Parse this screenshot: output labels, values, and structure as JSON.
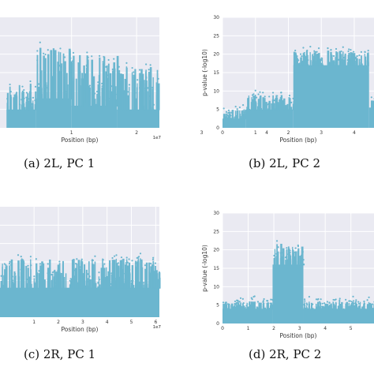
{
  "colors": {
    "points": "#6bb6cf",
    "plot_bg": "#eaeaf2",
    "grid": "#ffffff"
  },
  "chart_data": [
    {
      "id": "a",
      "type": "scatter",
      "caption": "(a) 2L, PC 1",
      "xlabel": "Position (bp)",
      "ylabel": "",
      "x_multiplier": "1e7",
      "x_ticks": [
        "1",
        "2",
        "3",
        "4"
      ],
      "x_tick_values": [
        1,
        2,
        3,
        4
      ],
      "xlim": [
        -0.1,
        2.35
      ],
      "y_ticks": [],
      "ylim": [
        0,
        30
      ],
      "grid": true,
      "legend": "none",
      "series": [
        {
          "segments": [
            {
              "x": [
                0.0,
                0.45
              ],
              "base": 5.0,
              "peak": 12.0
            },
            {
              "x": [
                0.45,
                1.0
              ],
              "base": 8.0,
              "peak": 22.0
            },
            {
              "x": [
                1.0,
                1.7
              ],
              "base": 6.0,
              "peak": 20.0
            },
            {
              "x": [
                1.7,
                2.35
              ],
              "base": 5.0,
              "peak": 17.0
            }
          ]
        }
      ]
    },
    {
      "id": "b",
      "type": "scatter",
      "caption": "(b) 2L, PC 2",
      "xlabel": "Position (bp)",
      "ylabel": "p-value (-log10)",
      "x_multiplier": "",
      "x_ticks": [
        "0",
        "1",
        "2",
        "3",
        "4"
      ],
      "x_tick_values": [
        0,
        1,
        2,
        3,
        4
      ],
      "xlim": [
        0,
        4.6
      ],
      "y_ticks": [
        "0",
        "5",
        "10",
        "15",
        "20",
        "25",
        "30"
      ],
      "y_tick_values": [
        0,
        5,
        10,
        15,
        20,
        25,
        30
      ],
      "ylim": [
        0,
        30
      ],
      "grid": true,
      "legend": "none",
      "series": [
        {
          "segments": [
            {
              "x": [
                0.0,
                0.7
              ],
              "base": 2.5,
              "peak": 5.0
            },
            {
              "x": [
                0.7,
                2.15
              ],
              "base": 5.0,
              "peak": 9.0
            },
            {
              "x": [
                2.15,
                4.45
              ],
              "base": 17.0,
              "peak": 21.0
            },
            {
              "x": [
                4.45,
                4.6
              ],
              "base": 5.5,
              "peak": 8.0
            }
          ]
        }
      ]
    },
    {
      "id": "c",
      "type": "scatter",
      "caption": "(c) 2R, PC 1",
      "xlabel": "Position (bp)",
      "ylabel": "",
      "x_multiplier": "1e7",
      "x_ticks": [
        "1",
        "2",
        "3",
        "4",
        "5",
        "6"
      ],
      "x_tick_values": [
        1,
        2,
        3,
        4,
        5,
        6
      ],
      "xlim": [
        -0.4,
        6.15
      ],
      "y_ticks": [],
      "ylim": [
        0,
        30
      ],
      "grid": true,
      "legend": "none",
      "series": [
        {
          "segments": [
            {
              "x": [
                -0.4,
                6.15
              ],
              "base": 8.0,
              "peak": 16.0
            }
          ]
        }
      ]
    },
    {
      "id": "d",
      "type": "scatter",
      "caption": "(d) 2R, PC 2",
      "xlabel": "Position (bp)",
      "ylabel": "p-value (-log10)",
      "x_multiplier": "",
      "x_ticks": [
        "0",
        "1",
        "2",
        "3",
        "4",
        "5"
      ],
      "x_tick_values": [
        0,
        1,
        2,
        3,
        4,
        5
      ],
      "xlim": [
        0,
        5.9
      ],
      "y_ticks": [
        "0",
        "5",
        "10",
        "15",
        "20",
        "25",
        "30"
      ],
      "y_tick_values": [
        0,
        5,
        10,
        15,
        20,
        25,
        30
      ],
      "ylim": [
        0,
        30
      ],
      "grid": true,
      "legend": "none",
      "series": [
        {
          "segments": [
            {
              "x": [
                0.0,
                1.95
              ],
              "base": 4.0,
              "peak": 6.0
            },
            {
              "x": [
                1.95,
                3.15
              ],
              "base": 16.0,
              "peak": 22.0
            },
            {
              "x": [
                3.15,
                5.9
              ],
              "base": 4.0,
              "peak": 6.0
            }
          ]
        }
      ]
    }
  ]
}
